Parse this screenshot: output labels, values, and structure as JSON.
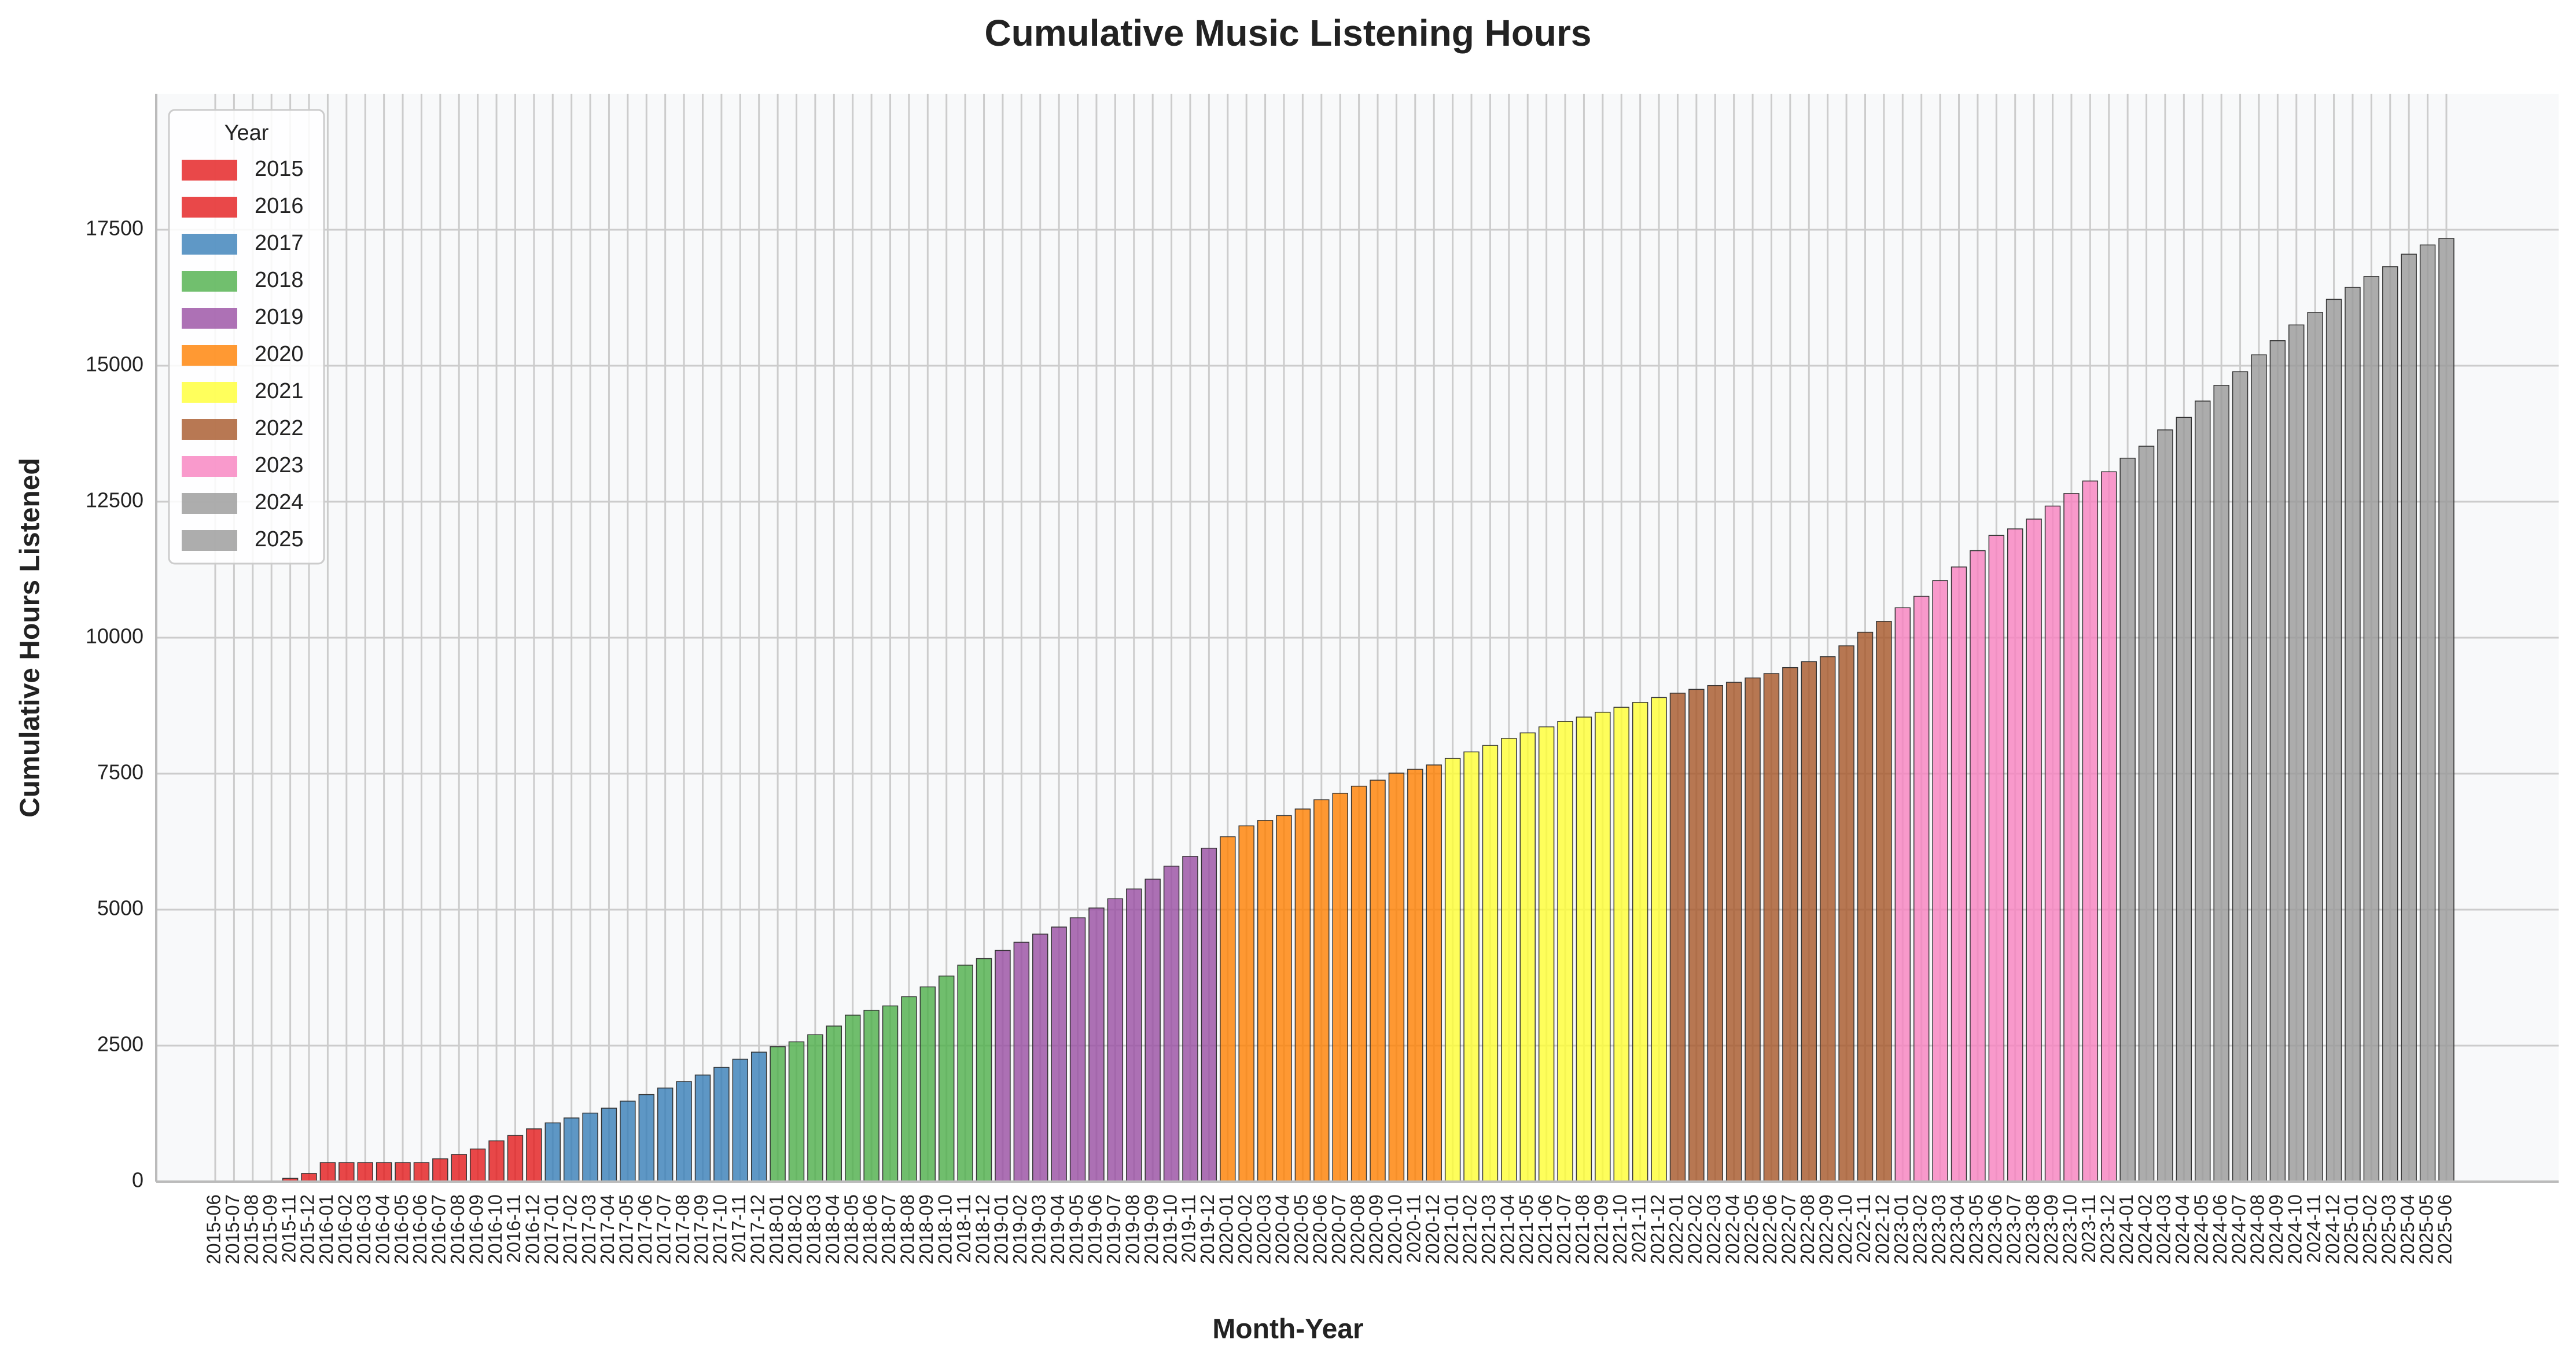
{
  "chart_data": {
    "type": "bar",
    "title": "Cumulative Music Listening Hours",
    "x_label": "Month-Year",
    "y_label": "Cumulative Hours Listened",
    "categories": [
      "2015-06",
      "2015-07",
      "2015-08",
      "2015-09",
      "2015-11",
      "2015-12",
      "2016-01",
      "2016-02",
      "2016-03",
      "2016-04",
      "2016-05",
      "2016-06",
      "2016-07",
      "2016-08",
      "2016-09",
      "2016-10",
      "2016-11",
      "2016-12",
      "2017-01",
      "2017-02",
      "2017-03",
      "2017-04",
      "2017-05",
      "2017-06",
      "2017-07",
      "2017-08",
      "2017-09",
      "2017-10",
      "2017-11",
      "2017-12",
      "2018-01",
      "2018-02",
      "2018-03",
      "2018-04",
      "2018-05",
      "2018-06",
      "2018-07",
      "2018-08",
      "2018-09",
      "2018-10",
      "2018-11",
      "2018-12",
      "2019-01",
      "2019-02",
      "2019-03",
      "2019-04",
      "2019-05",
      "2019-06",
      "2019-07",
      "2019-08",
      "2019-09",
      "2019-10",
      "2019-11",
      "2019-12",
      "2020-01",
      "2020-02",
      "2020-03",
      "2020-04",
      "2020-05",
      "2020-06",
      "2020-07",
      "2020-08",
      "2020-09",
      "2020-10",
      "2020-11",
      "2020-12",
      "2021-01",
      "2021-02",
      "2021-03",
      "2021-04",
      "2021-05",
      "2021-06",
      "2021-07",
      "2021-08",
      "2021-09",
      "2021-10",
      "2021-11",
      "2021-12",
      "2022-01",
      "2022-02",
      "2022-03",
      "2022-04",
      "2022-05",
      "2022-06",
      "2022-07",
      "2022-08",
      "2022-09",
      "2022-10",
      "2022-11",
      "2022-12",
      "2023-01",
      "2023-02",
      "2023-03",
      "2023-04",
      "2023-05",
      "2023-06",
      "2023-07",
      "2023-08",
      "2023-09",
      "2023-10",
      "2023-11",
      "2023-12",
      "2024-01",
      "2024-02",
      "2024-03",
      "2024-04",
      "2024-05",
      "2024-06",
      "2024-07",
      "2024-08",
      "2024-09",
      "2024-10",
      "2024-11",
      "2024-12",
      "2025-01",
      "2025-02",
      "2025-03",
      "2025-04",
      "2025-05",
      "2025-06"
    ],
    "values": [
      0,
      0,
      0,
      0,
      60,
      150,
      350,
      350,
      350,
      350,
      350,
      350,
      420,
      500,
      600,
      750,
      850,
      970,
      1080,
      1170,
      1260,
      1350,
      1480,
      1600,
      1720,
      1840,
      1960,
      2100,
      2250,
      2380,
      2480,
      2570,
      2700,
      2860,
      3060,
      3150,
      3230,
      3400,
      3580,
      3780,
      3980,
      4100,
      4250,
      4400,
      4550,
      4680,
      4850,
      5030,
      5200,
      5380,
      5560,
      5800,
      5980,
      6130,
      6340,
      6540,
      6640,
      6730,
      6850,
      7020,
      7140,
      7270,
      7380,
      7510,
      7580,
      7660,
      7780,
      7900,
      8020,
      8150,
      8250,
      8360,
      8460,
      8540,
      8630,
      8720,
      8810,
      8900,
      8980,
      9050,
      9120,
      9180,
      9260,
      9340,
      9450,
      9560,
      9650,
      9850,
      10100,
      10300,
      10550,
      10760,
      11050,
      11300,
      11600,
      11880,
      12000,
      12180,
      12420,
      12650,
      12880,
      13050,
      13300,
      13520,
      13820,
      14050,
      14350,
      14640,
      14890,
      15200,
      15460,
      15750,
      15980,
      16220,
      16440,
      16640,
      16820,
      17050,
      17220,
      17340
    ],
    "legend_title": "Year",
    "legend": [
      {
        "name": "2015",
        "color": "#e41a1c"
      },
      {
        "name": "2016",
        "color": "#e41a1c"
      },
      {
        "name": "2017",
        "color": "#377eb8"
      },
      {
        "name": "2018",
        "color": "#4daf4a"
      },
      {
        "name": "2019",
        "color": "#984ea3"
      },
      {
        "name": "2020",
        "color": "#ff7f00"
      },
      {
        "name": "2021",
        "color": "#ffff33"
      },
      {
        "name": "2022",
        "color": "#a65628"
      },
      {
        "name": "2023",
        "color": "#f781bf"
      },
      {
        "name": "2024",
        "color": "#999999"
      },
      {
        "name": "2025",
        "color": "#999999"
      }
    ],
    "legend_position": "upper left",
    "ylim": [
      0,
      20000
    ],
    "yticks": [
      0,
      2500,
      5000,
      7500,
      10000,
      12500,
      15000,
      17500
    ],
    "grid": true
  }
}
